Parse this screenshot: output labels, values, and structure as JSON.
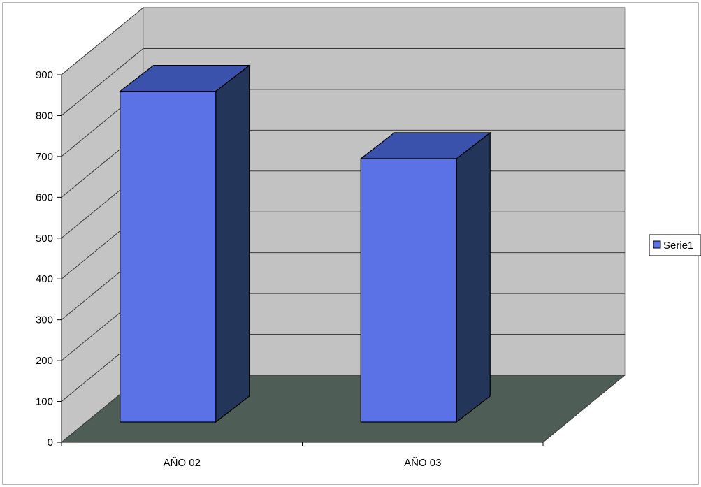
{
  "chart_data": {
    "type": "bar",
    "categories": [
      "AÑO 02",
      "AÑO 03"
    ],
    "series": [
      {
        "name": "Serie1",
        "values": [
          810,
          645
        ]
      }
    ],
    "ylim": [
      0,
      900
    ],
    "y_ticks": [
      "0",
      "100",
      "200",
      "300",
      "400",
      "500",
      "600",
      "700",
      "800",
      "900"
    ],
    "grid": true,
    "legend": "right",
    "style": "3d-column",
    "colors": {
      "bar_front": "#5a72e6",
      "bar_top": "#3b52ad",
      "bar_side": "#233558",
      "back_wall": "#c2c2c2",
      "side_wall": "#c4c4c4",
      "floor": "#4f5d57",
      "gridline": "#3c3c3c",
      "frame": "#9a9a9a"
    }
  }
}
